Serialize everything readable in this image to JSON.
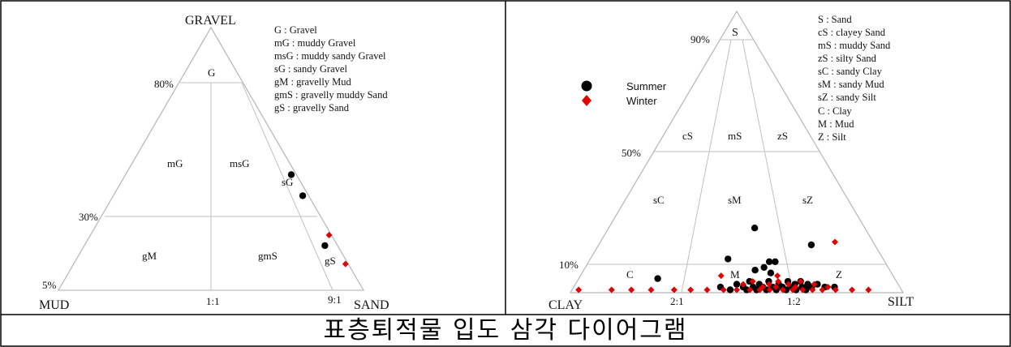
{
  "caption": "표층퇴적물 입도 삼각 다이어그램",
  "left_diagram": {
    "vertices": {
      "top": "GRAVEL",
      "bottom_left": "MUD",
      "bottom_right": "SAND"
    },
    "gravel_levels": [
      "80%",
      "30%",
      "5%"
    ],
    "ratios": [
      "1:1",
      "9:1"
    ],
    "fields": {
      "G": "G",
      "mG": "mG",
      "msG": "msG",
      "sG": "sG",
      "gM": "gM",
      "gmS": "gmS",
      "gS": "gS"
    },
    "legend": [
      "G : Gravel",
      "mG : muddy Gravel",
      "msG : muddy sandy Gravel",
      "sG : sandy Gravel",
      "gM : gravelly Mud",
      "gmS : gravelly muddy Sand",
      "gS : gravelly Sand"
    ],
    "samples_summer": [
      {
        "gravel": 44,
        "sand_ratio": 0.97
      },
      {
        "gravel": 36,
        "sand_ratio": 0.97
      },
      {
        "gravel": 17,
        "sand_ratio": 0.95
      }
    ],
    "samples_winter": [
      {
        "gravel": 21,
        "sand_ratio": 0.99
      },
      {
        "gravel": 10,
        "sand_ratio": 0.99
      }
    ]
  },
  "right_diagram": {
    "vertices": {
      "top": "S",
      "bottom_left": "CLAY",
      "bottom_right": "SILT"
    },
    "sand_levels": [
      "90%",
      "50%",
      "10%"
    ],
    "ratios": [
      "2:1",
      "1:2"
    ],
    "fields": {
      "cS": "cS",
      "mS": "mS",
      "zS": "zS",
      "sC": "sC",
      "sM": "sM",
      "sZ": "sZ",
      "C": "C",
      "M": "M",
      "Z": "Z"
    },
    "series_legend": [
      {
        "name": "Summer",
        "marker": "circle",
        "color": "#000000"
      },
      {
        "name": "Winter",
        "marker": "diamond",
        "color": "#e00000"
      }
    ],
    "legend": [
      "S : Sand",
      "cS : clayey Sand",
      "mS : muddy Sand",
      "zS : silty Sand",
      "sC : sandy Clay",
      "sM : sandy Mud",
      "sZ : sandy Silt",
      "C : Clay",
      "M : Mud",
      "Z : Silt"
    ],
    "samples_summer": [
      {
        "sand": 23,
        "silt_ratio": 0.57
      },
      {
        "sand": 17,
        "silt_ratio": 0.77
      },
      {
        "sand": 12,
        "silt_ratio": 0.47
      },
      {
        "sand": 11,
        "silt_ratio": 0.61
      },
      {
        "sand": 11,
        "silt_ratio": 0.63
      },
      {
        "sand": 9,
        "silt_ratio": 0.59
      },
      {
        "sand": 8,
        "silt_ratio": 0.56
      },
      {
        "sand": 7,
        "silt_ratio": 0.61
      },
      {
        "sand": 5,
        "silt_ratio": 0.25
      },
      {
        "sand": 4,
        "silt_ratio": 0.54
      },
      {
        "sand": 4,
        "silt_ratio": 0.6
      },
      {
        "sand": 4,
        "silt_ratio": 0.66
      },
      {
        "sand": 4,
        "silt_ratio": 0.7
      },
      {
        "sand": 3,
        "silt_ratio": 0.5
      },
      {
        "sand": 3,
        "silt_ratio": 0.57
      },
      {
        "sand": 3,
        "silt_ratio": 0.63
      },
      {
        "sand": 3,
        "silt_ratio": 0.68
      },
      {
        "sand": 3,
        "silt_ratio": 0.72
      },
      {
        "sand": 3,
        "silt_ratio": 0.75
      },
      {
        "sand": 2,
        "silt_ratio": 0.45
      },
      {
        "sand": 2,
        "silt_ratio": 0.52
      },
      {
        "sand": 2,
        "silt_ratio": 0.55
      },
      {
        "sand": 2,
        "silt_ratio": 0.58
      },
      {
        "sand": 2,
        "silt_ratio": 0.61
      },
      {
        "sand": 2,
        "silt_ratio": 0.64
      },
      {
        "sand": 2,
        "silt_ratio": 0.67
      },
      {
        "sand": 2,
        "silt_ratio": 0.7
      },
      {
        "sand": 2,
        "silt_ratio": 0.73
      },
      {
        "sand": 2,
        "silt_ratio": 0.77
      },
      {
        "sand": 2,
        "silt_ratio": 0.8
      },
      {
        "sand": 1,
        "silt_ratio": 0.48
      },
      {
        "sand": 1,
        "silt_ratio": 0.53
      },
      {
        "sand": 1,
        "silt_ratio": 0.56
      },
      {
        "sand": 1,
        "silt_ratio": 0.59
      },
      {
        "sand": 1,
        "silt_ratio": 0.62
      },
      {
        "sand": 1,
        "silt_ratio": 0.65
      },
      {
        "sand": 1,
        "silt_ratio": 0.68
      },
      {
        "sand": 1,
        "silt_ratio": 0.71
      }
    ],
    "samples_winter": [
      {
        "sand": 18,
        "silt_ratio": 0.86
      },
      {
        "sand": 6,
        "silt_ratio": 0.45
      },
      {
        "sand": 6,
        "silt_ratio": 0.63
      },
      {
        "sand": 4,
        "silt_ratio": 0.55
      },
      {
        "sand": 4,
        "silt_ratio": 0.63
      },
      {
        "sand": 4,
        "silt_ratio": 0.7
      },
      {
        "sand": 3,
        "silt_ratio": 0.52
      },
      {
        "sand": 3,
        "silt_ratio": 0.6
      },
      {
        "sand": 3,
        "silt_ratio": 0.66
      },
      {
        "sand": 3,
        "silt_ratio": 0.74
      },
      {
        "sand": 2,
        "silt_ratio": 0.58
      },
      {
        "sand": 2,
        "silt_ratio": 0.62
      },
      {
        "sand": 2,
        "silt_ratio": 0.68
      },
      {
        "sand": 2,
        "silt_ratio": 0.78
      },
      {
        "sand": 1,
        "silt_ratio": 0.02
      },
      {
        "sand": 1,
        "silt_ratio": 0.12
      },
      {
        "sand": 1,
        "silt_ratio": 0.18
      },
      {
        "sand": 1,
        "silt_ratio": 0.24
      },
      {
        "sand": 1,
        "silt_ratio": 0.31
      },
      {
        "sand": 1,
        "silt_ratio": 0.36
      },
      {
        "sand": 1,
        "silt_ratio": 0.41
      },
      {
        "sand": 1,
        "silt_ratio": 0.46
      },
      {
        "sand": 1,
        "silt_ratio": 0.5
      },
      {
        "sand": 1,
        "silt_ratio": 0.54
      },
      {
        "sand": 1,
        "silt_ratio": 0.57
      },
      {
        "sand": 1,
        "silt_ratio": 0.6
      },
      {
        "sand": 1,
        "silt_ratio": 0.64
      },
      {
        "sand": 1,
        "silt_ratio": 0.67
      },
      {
        "sand": 1,
        "silt_ratio": 0.7
      },
      {
        "sand": 1,
        "silt_ratio": 0.73
      },
      {
        "sand": 1,
        "silt_ratio": 0.76
      },
      {
        "sand": 1,
        "silt_ratio": 0.8
      },
      {
        "sand": 1,
        "silt_ratio": 0.85
      },
      {
        "sand": 1,
        "silt_ratio": 0.9
      }
    ]
  }
}
